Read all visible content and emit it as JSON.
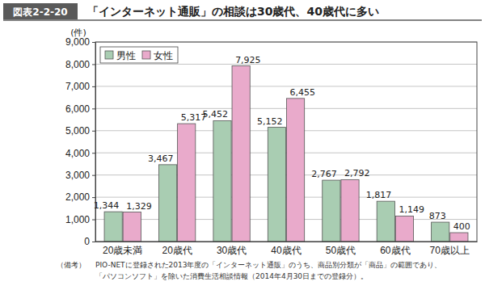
{
  "chart_data": {
    "type": "bar",
    "figure_number": "図表2-2-20",
    "title": "「インターネット通販」の相談は30歳代、40歳代に多い",
    "y_label": "(件)",
    "notes_label": "（備考）",
    "notes": [
      "PIO-NETに登録された2013年度の「インターネット通販」のうち、商品別分類が「商品」の範囲であり、",
      "「パソコンソフト」を除いた消費生活相談情報（2014年4月30日までの登録分）。"
    ],
    "categories": [
      "20歳未満",
      "20歳代",
      "30歳代",
      "40歳代",
      "50歳代",
      "60歳代",
      "70歳以上"
    ],
    "series": [
      {
        "name": "男性",
        "color": "#a9cdb2",
        "values": [
          1344,
          3467,
          5452,
          5152,
          2767,
          1817,
          873
        ],
        "value_labels": [
          "1,344",
          "3,467",
          "5,452",
          "5,152",
          "2,767",
          "1,817",
          "873"
        ]
      },
      {
        "name": "女性",
        "color": "#e9aacb",
        "values": [
          1329,
          5317,
          7925,
          6455,
          2792,
          1149,
          400
        ],
        "value_labels": [
          "1,329",
          "5,317",
          "7,925",
          "6,455",
          "2,792",
          "1,149",
          "400"
        ]
      }
    ],
    "ylim": [
      0,
      9000
    ],
    "yticks": [
      0,
      {
        "value": 1000,
        "label": "1,000"
      },
      {
        "value": 2000,
        "label": "2,000"
      },
      {
        "value": 3000,
        "label": "3,000"
      },
      {
        "value": 4000,
        "label": "4,000"
      },
      {
        "value": 5000,
        "label": "5,000"
      },
      {
        "value": 6000,
        "label": "6,000"
      },
      {
        "value": 7000,
        "label": "7,000"
      },
      {
        "value": 8000,
        "label": "8,000"
      },
      {
        "value": 9000,
        "label": "9,000"
      }
    ],
    "grid": true,
    "legend": "upper left",
    "data_labels": true
  }
}
